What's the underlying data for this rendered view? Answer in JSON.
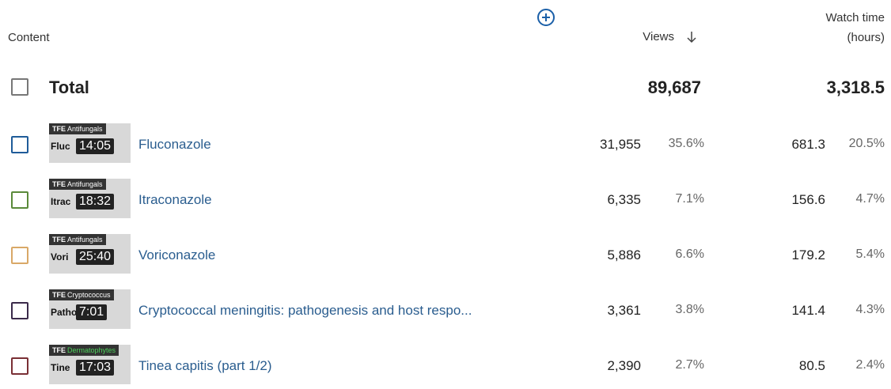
{
  "header": {
    "content": "Content",
    "views": "Views",
    "watch_time": "Watch time",
    "watch_time_unit": "(hours)"
  },
  "total": {
    "label": "Total",
    "views": "89,687",
    "watch_time": "3,318.5"
  },
  "rows": [
    {
      "channel_logo": "TFE",
      "tag": "Antifungals",
      "tag_color": "#ffffff",
      "thumb_text": "Fluc",
      "duration": "14:05",
      "title": "Fluconazole",
      "views": "31,955",
      "views_share": "35.6%",
      "watch_time": "681.3",
      "watch_time_share": "20.5%",
      "color": "#1f5c99"
    },
    {
      "channel_logo": "TFE",
      "tag": "Antifungals",
      "tag_color": "#ffffff",
      "thumb_text": "Itrac",
      "duration": "18:32",
      "title": "Itraconazole",
      "views": "6,335",
      "views_share": "7.1%",
      "watch_time": "156.6",
      "watch_time_share": "4.7%",
      "color": "#5a8a3a"
    },
    {
      "channel_logo": "TFE",
      "tag": "Antifungals",
      "tag_color": "#ffffff",
      "thumb_text": "Vori",
      "duration": "25:40",
      "title": "Voriconazole",
      "views": "5,886",
      "views_share": "6.6%",
      "watch_time": "179.2",
      "watch_time_share": "5.4%",
      "color": "#d9a867"
    },
    {
      "channel_logo": "TFE",
      "tag": "Cryptococcus",
      "tag_color": "#ffffff",
      "thumb_text": "Patho",
      "duration": "7:01",
      "title": "Cryptococcal meningitis: pathogenesis and host respo...",
      "views": "3,361",
      "views_share": "3.8%",
      "watch_time": "141.4",
      "watch_time_share": "4.3%",
      "color": "#3b2a4a"
    },
    {
      "channel_logo": "TFE",
      "tag": "Dermatophytes",
      "tag_color": "#4ccf5a",
      "thumb_text": "Tine",
      "duration": "17:03",
      "title": "Tinea capitis (part 1/2)",
      "views": "2,390",
      "views_share": "2.7%",
      "watch_time": "80.5",
      "watch_time_share": "2.4%",
      "color": "#7a2f35"
    }
  ]
}
